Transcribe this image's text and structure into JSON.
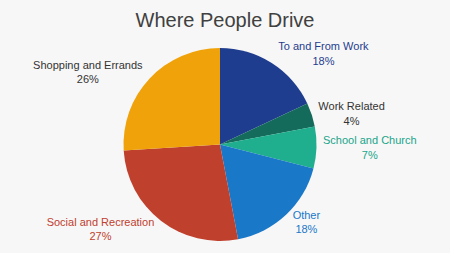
{
  "chart_data": {
    "type": "pie",
    "title": "Where People Drive",
    "categories": [
      "To and From Work",
      "Work Related",
      "School and Church",
      "Other",
      "Social and Recreation",
      "Shopping and Errands"
    ],
    "values": [
      18,
      4,
      7,
      18,
      27,
      26
    ],
    "value_labels": [
      "18%",
      "4%",
      "7%",
      "18%",
      "27%",
      "26%"
    ],
    "colors": [
      "#1f3d8f",
      "#146b5c",
      "#1fae8e",
      "#1a78c8",
      "#c0402e",
      "#f0a20a"
    ],
    "data_labels": true
  }
}
